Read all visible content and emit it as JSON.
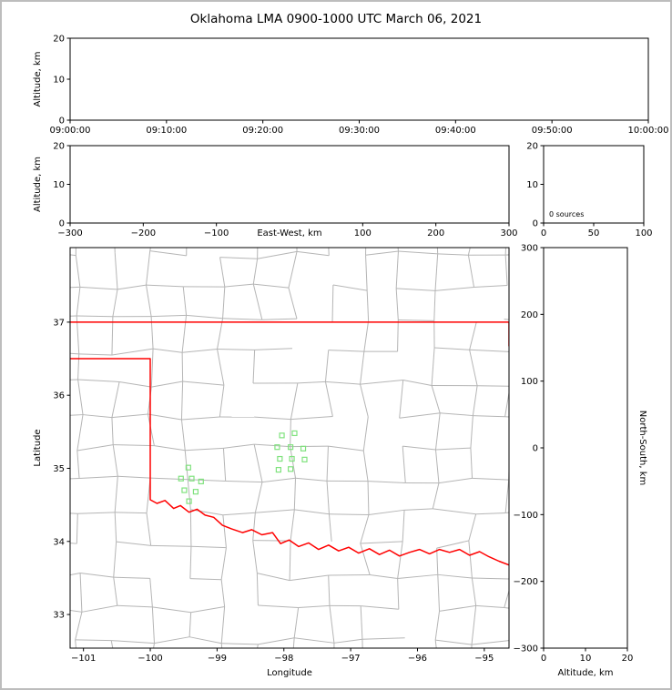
{
  "figure": {
    "title": "Oklahoma LMA 0900-1000 UTC March 06, 2021",
    "background": "#ffffff",
    "frame_color": "#bdbdbd"
  },
  "colors": {
    "axis": "#000000",
    "county_line": "#b5b5b5",
    "state_border": "#ff0000",
    "station_marker": "#80e27e"
  },
  "chart_data": [
    {
      "id": "time_height",
      "type": "scatter",
      "title": "",
      "xlabel": "",
      "ylabel": "Altitude, km",
      "xlim": [
        0,
        3600
      ],
      "ylim": [
        0,
        20
      ],
      "xtick_values": [
        0,
        600,
        1200,
        1800,
        2400,
        3000,
        3600
      ],
      "xtick_labels": [
        "09:00:00",
        "09:10:00",
        "09:20:00",
        "09:30:00",
        "09:40:00",
        "09:50:00",
        "10:00:00"
      ],
      "ytick_values": [
        0,
        10,
        20
      ],
      "ytick_labels": [
        "0",
        "10",
        "20"
      ],
      "points": []
    },
    {
      "id": "ew_height",
      "type": "scatter",
      "xlabel": "East-West, km",
      "ylabel": "Altitude, km",
      "xlim": [
        -300,
        300
      ],
      "ylim": [
        0,
        20
      ],
      "xtick_values": [
        -300,
        -200,
        -100,
        100,
        200,
        300
      ],
      "xtick_labels": [
        "−300",
        "−200",
        "−100",
        "100",
        "200",
        "300"
      ],
      "ytick_values": [
        0,
        10,
        20
      ],
      "ytick_labels": [
        "0",
        "10",
        "20"
      ],
      "points": []
    },
    {
      "id": "alt_histogram",
      "type": "line",
      "annotation": "0 sources",
      "xlim": [
        0,
        100
      ],
      "ylim": [
        0,
        20
      ],
      "xtick_values": [
        0,
        50,
        100
      ],
      "xtick_labels": [
        "0",
        "50",
        "100"
      ],
      "ytick_values": [
        0,
        10,
        20
      ],
      "ytick_labels": [
        "0",
        "10",
        "20"
      ],
      "points": []
    },
    {
      "id": "plan_map",
      "type": "scatter",
      "xlabel": "Longitude",
      "ylabel": "Latitude",
      "xlim": [
        -101.2,
        -94.63
      ],
      "ylim": [
        32.54,
        38.02
      ],
      "xtick_values": [
        -101,
        -100,
        -99,
        -98,
        -97,
        -96,
        -95
      ],
      "xtick_labels": [
        "−101",
        "−100",
        "−99",
        "−98",
        "−97",
        "−96",
        "−95"
      ],
      "ytick_values": [
        33,
        34,
        35,
        36,
        37
      ],
      "ytick_labels": [
        "33",
        "34",
        "35",
        "36",
        "37"
      ],
      "stations": [
        [
          -98.03,
          35.45
        ],
        [
          -97.84,
          35.48
        ],
        [
          -98.1,
          35.29
        ],
        [
          -97.9,
          35.29
        ],
        [
          -97.71,
          35.27
        ],
        [
          -98.06,
          35.13
        ],
        [
          -97.88,
          35.13
        ],
        [
          -97.69,
          35.12
        ],
        [
          -98.08,
          34.98
        ],
        [
          -97.9,
          34.99
        ],
        [
          -99.43,
          35.01
        ],
        [
          -99.54,
          34.86
        ],
        [
          -99.38,
          34.86
        ],
        [
          -99.24,
          34.82
        ],
        [
          -99.49,
          34.7
        ],
        [
          -99.32,
          34.68
        ],
        [
          -99.42,
          34.55
        ]
      ],
      "state_border_segments": [
        [
          [
            -101.25,
            37.0
          ],
          [
            -94.58,
            37.0
          ]
        ],
        [
          [
            -94.63,
            37.0
          ],
          [
            -94.63,
            36.67
          ]
        ],
        [
          [
            -101.25,
            36.5
          ],
          [
            -100.0,
            36.5
          ],
          [
            -100.0,
            34.57
          ],
          [
            -99.9,
            34.52
          ],
          [
            -99.78,
            34.56
          ],
          [
            -99.65,
            34.45
          ],
          [
            -99.55,
            34.49
          ],
          [
            -99.42,
            34.4
          ],
          [
            -99.3,
            34.44
          ],
          [
            -99.18,
            34.36
          ],
          [
            -99.05,
            34.33
          ],
          [
            -98.92,
            34.22
          ],
          [
            -98.78,
            34.17
          ],
          [
            -98.62,
            34.12
          ],
          [
            -98.48,
            34.16
          ],
          [
            -98.33,
            34.09
          ],
          [
            -98.17,
            34.12
          ],
          [
            -98.05,
            33.97
          ],
          [
            -97.92,
            34.02
          ],
          [
            -97.78,
            33.93
          ],
          [
            -97.63,
            33.98
          ],
          [
            -97.48,
            33.89
          ],
          [
            -97.33,
            33.95
          ],
          [
            -97.18,
            33.87
          ],
          [
            -97.03,
            33.92
          ],
          [
            -96.88,
            33.84
          ],
          [
            -96.72,
            33.9
          ],
          [
            -96.57,
            33.82
          ],
          [
            -96.42,
            33.88
          ],
          [
            -96.27,
            33.8
          ],
          [
            -96.12,
            33.85
          ],
          [
            -95.97,
            33.89
          ],
          [
            -95.82,
            33.83
          ],
          [
            -95.67,
            33.89
          ],
          [
            -95.52,
            33.85
          ],
          [
            -95.37,
            33.89
          ],
          [
            -95.22,
            33.81
          ],
          [
            -95.07,
            33.86
          ],
          [
            -94.93,
            33.79
          ],
          [
            -94.78,
            33.73
          ],
          [
            -94.58,
            33.66
          ]
        ]
      ],
      "points": []
    },
    {
      "id": "ns_height",
      "type": "scatter",
      "xlabel": "Altitude, km",
      "ylabel_right": "North-South, km",
      "xlim": [
        0,
        20
      ],
      "ylim": [
        -300,
        300
      ],
      "xtick_values": [
        0,
        10,
        20
      ],
      "xtick_labels": [
        "0",
        "10",
        "20"
      ],
      "ytick_values": [
        -300,
        -200,
        -100,
        0,
        100,
        200,
        300
      ],
      "ytick_labels": [
        "−300",
        "−200",
        "−100",
        "0",
        "100",
        "200",
        "300"
      ],
      "points": []
    }
  ]
}
